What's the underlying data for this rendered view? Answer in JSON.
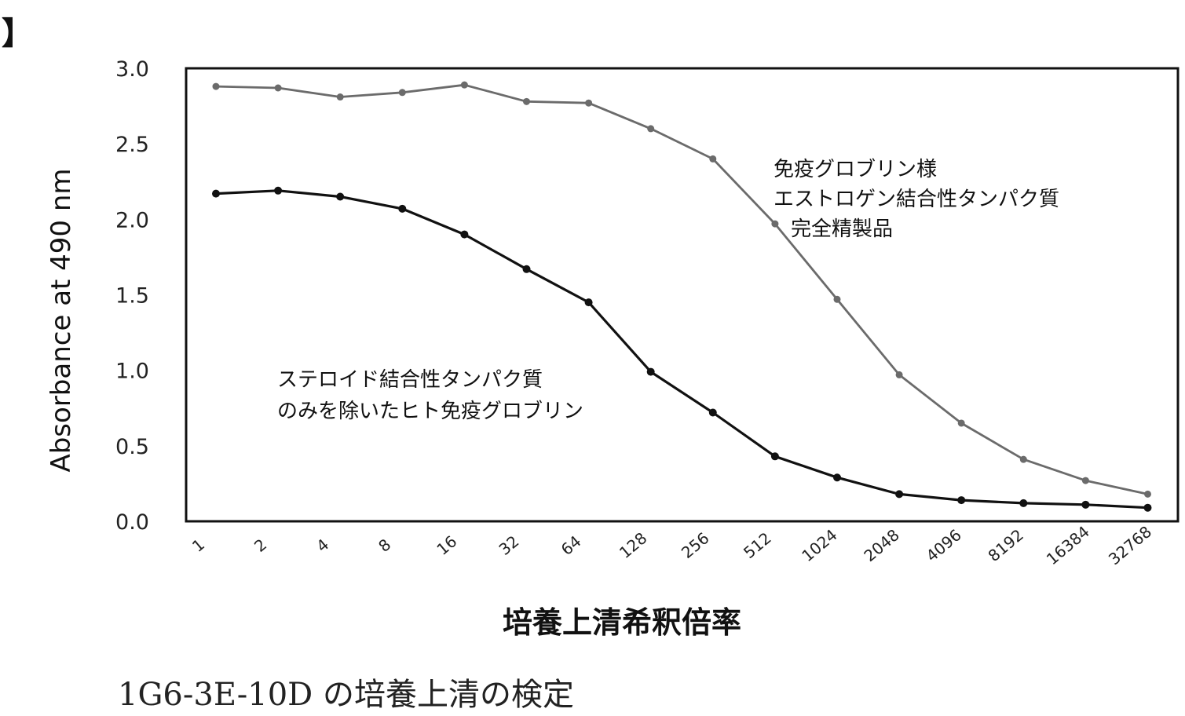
{
  "corner_mark": "】",
  "caption": "1G6-3E-10D の培養上清の検定",
  "chart_data": {
    "type": "line",
    "xlabel": "培養上清希釈倍率",
    "ylabel": "Absorbance at 490 nm",
    "ylim": [
      0,
      3.0
    ],
    "yticks": [
      "0.0",
      "0.5",
      "1.0",
      "1.5",
      "2.0",
      "2.5",
      "3.0"
    ],
    "categories": [
      "1",
      "2",
      "4",
      "8",
      "16",
      "32",
      "64",
      "128",
      "256",
      "512",
      "1024",
      "2048",
      "4096",
      "8192",
      "16384",
      "32768"
    ],
    "grid": false,
    "series": [
      {
        "name": "免疫グロブリン様エストロゲン結合性タンパク質完全精製品",
        "label_lines": [
          "免疫グロブリン様",
          "エストロゲン結合性タンパク質",
          "完全精製品"
        ],
        "color": "#6b6b6b",
        "values": [
          2.88,
          2.87,
          2.81,
          2.84,
          2.89,
          2.78,
          2.77,
          2.6,
          2.4,
          1.97,
          1.47,
          0.97,
          0.65,
          0.41,
          0.27,
          0.18
        ]
      },
      {
        "name": "ステロイド結合性タンパク質のみを除いたヒト免疫グロブリン",
        "label_lines": [
          "ステロイド結合性タンパク質",
          "のみを除いたヒト免疫グロブリン"
        ],
        "color": "#111111",
        "values": [
          2.17,
          2.19,
          2.15,
          2.07,
          1.9,
          1.67,
          1.45,
          0.99,
          0.72,
          0.43,
          0.29,
          0.18,
          0.14,
          0.12,
          0.11,
          0.09
        ]
      }
    ]
  }
}
